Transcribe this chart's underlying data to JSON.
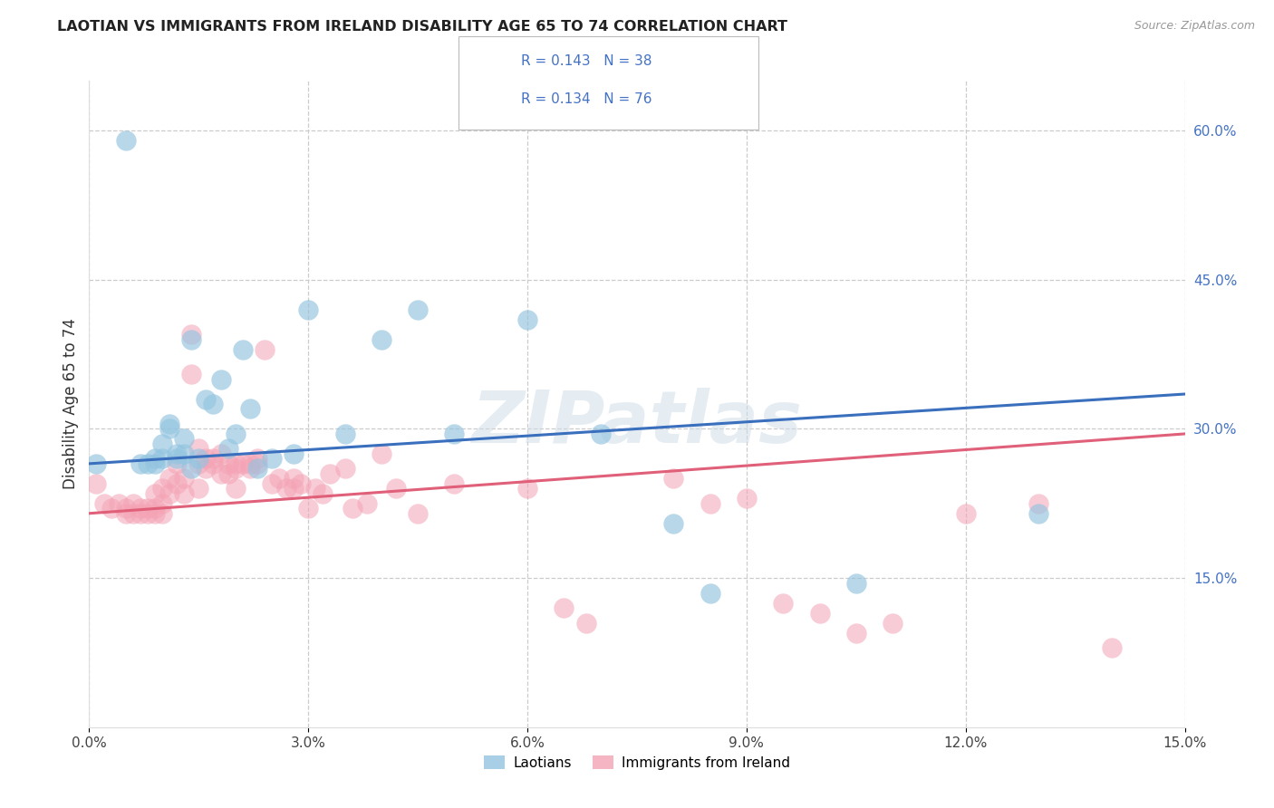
{
  "title": "LAOTIAN VS IMMIGRANTS FROM IRELAND DISABILITY AGE 65 TO 74 CORRELATION CHART",
  "source": "Source: ZipAtlas.com",
  "ylabel": "Disability Age 65 to 74",
  "legend_label_1": "Laotians",
  "legend_label_2": "Immigrants from Ireland",
  "r1": 0.143,
  "n1": 38,
  "r2": 0.134,
  "n2": 76,
  "xlim": [
    0.0,
    0.15
  ],
  "ylim": [
    0.0,
    0.65
  ],
  "xticks": [
    0.0,
    0.03,
    0.06,
    0.09,
    0.12,
    0.15
  ],
  "xtick_labels": [
    "0.0%",
    "3.0%",
    "6.0%",
    "9.0%",
    "12.0%",
    "15.0%"
  ],
  "yticks_right": [
    0.15,
    0.3,
    0.45,
    0.6
  ],
  "ytick_labels_right": [
    "15.0%",
    "30.0%",
    "45.0%",
    "60.0%"
  ],
  "color_blue": "#93c4e0",
  "color_pink": "#f4a3b5",
  "line_color_blue": "#3a6fbd",
  "line_color_pink": "#e0607a",
  "watermark": "ZIPatlas",
  "blue_trend_x0": 0.0,
  "blue_trend_y0": 0.265,
  "blue_trend_x1": 0.15,
  "blue_trend_y1": 0.335,
  "pink_trend_x0": 0.0,
  "pink_trend_y0": 0.215,
  "pink_trend_x1": 0.15,
  "pink_trend_y1": 0.295,
  "blue_x": [
    0.001,
    0.005,
    0.007,
    0.008,
    0.009,
    0.009,
    0.01,
    0.01,
    0.011,
    0.011,
    0.012,
    0.012,
    0.013,
    0.013,
    0.014,
    0.014,
    0.015,
    0.016,
    0.017,
    0.018,
    0.019,
    0.02,
    0.021,
    0.022,
    0.023,
    0.025,
    0.028,
    0.03,
    0.035,
    0.04,
    0.045,
    0.05,
    0.06,
    0.07,
    0.08,
    0.085,
    0.105,
    0.13
  ],
  "blue_y": [
    0.265,
    0.59,
    0.265,
    0.265,
    0.265,
    0.27,
    0.27,
    0.285,
    0.305,
    0.3,
    0.275,
    0.27,
    0.275,
    0.29,
    0.26,
    0.39,
    0.27,
    0.33,
    0.325,
    0.35,
    0.28,
    0.295,
    0.38,
    0.32,
    0.26,
    0.27,
    0.275,
    0.42,
    0.295,
    0.39,
    0.42,
    0.295,
    0.41,
    0.295,
    0.205,
    0.135,
    0.145,
    0.215
  ],
  "pink_x": [
    0.001,
    0.002,
    0.003,
    0.004,
    0.005,
    0.005,
    0.006,
    0.006,
    0.007,
    0.007,
    0.008,
    0.008,
    0.009,
    0.009,
    0.009,
    0.01,
    0.01,
    0.01,
    0.011,
    0.011,
    0.012,
    0.012,
    0.013,
    0.013,
    0.014,
    0.014,
    0.015,
    0.015,
    0.015,
    0.016,
    0.016,
    0.017,
    0.017,
    0.018,
    0.018,
    0.019,
    0.019,
    0.02,
    0.02,
    0.02,
    0.021,
    0.022,
    0.022,
    0.023,
    0.023,
    0.024,
    0.025,
    0.026,
    0.027,
    0.028,
    0.028,
    0.029,
    0.03,
    0.031,
    0.032,
    0.033,
    0.035,
    0.036,
    0.038,
    0.04,
    0.042,
    0.045,
    0.05,
    0.06,
    0.065,
    0.068,
    0.08,
    0.085,
    0.09,
    0.095,
    0.1,
    0.105,
    0.11,
    0.12,
    0.13,
    0.14
  ],
  "pink_y": [
    0.245,
    0.225,
    0.22,
    0.225,
    0.215,
    0.22,
    0.215,
    0.225,
    0.215,
    0.22,
    0.22,
    0.215,
    0.215,
    0.22,
    0.235,
    0.24,
    0.225,
    0.215,
    0.25,
    0.235,
    0.265,
    0.245,
    0.25,
    0.235,
    0.395,
    0.355,
    0.265,
    0.28,
    0.24,
    0.27,
    0.26,
    0.27,
    0.265,
    0.275,
    0.255,
    0.265,
    0.255,
    0.26,
    0.24,
    0.265,
    0.265,
    0.265,
    0.26,
    0.27,
    0.265,
    0.38,
    0.245,
    0.25,
    0.24,
    0.25,
    0.24,
    0.245,
    0.22,
    0.24,
    0.235,
    0.255,
    0.26,
    0.22,
    0.225,
    0.275,
    0.24,
    0.215,
    0.245,
    0.24,
    0.12,
    0.105,
    0.25,
    0.225,
    0.23,
    0.125,
    0.115,
    0.095,
    0.105,
    0.215,
    0.225,
    0.08
  ]
}
